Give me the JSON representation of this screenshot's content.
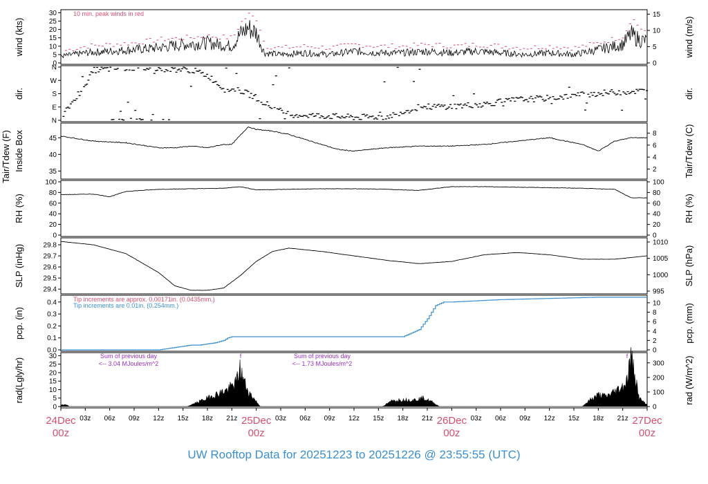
{
  "title": "UW Rooftop Data for 20251223  to  20251226 @ 23:55:55  (UTC)",
  "colors": {
    "frame": "#000000",
    "series": "#000000",
    "peak": "#d84f6d",
    "pcp_fine": "#d84f6d",
    "pcp_tip": "#3a8fd0",
    "rad_note": "#9b30c8",
    "date_label": "#d84f6d",
    "title": "#3a8fd0"
  },
  "x_axis": {
    "hour_ticks": [
      "03z",
      "06z",
      "09z",
      "12z",
      "15z",
      "18z",
      "21z",
      "03z",
      "06z",
      "09z",
      "12z",
      "15z",
      "18z",
      "21z",
      "03z",
      "06z",
      "09z",
      "12z",
      "15z",
      "18z",
      "21z"
    ],
    "day_labels": [
      {
        "date": "24Dec",
        "hour": "00z"
      },
      {
        "date": "25Dec",
        "hour": "00z"
      },
      {
        "date": "26Dec",
        "hour": "00z"
      },
      {
        "date": "27Dec",
        "hour": "00z"
      }
    ]
  },
  "chart_data": [
    {
      "id": "wind",
      "type": "line",
      "ylabel": "wind (kts)",
      "ylabel_right": "wind (m/s)",
      "ylim": [
        0,
        31
      ],
      "yticks": [
        0,
        5,
        10,
        15,
        20,
        25,
        30
      ],
      "right_ticks": [
        0,
        5,
        10,
        15
      ],
      "right_scale": 0.5144,
      "annotation": "10 min. peak winds in red",
      "x_hours": [
        0,
        3,
        6,
        9,
        12,
        15,
        18,
        21,
        22,
        23,
        24,
        25,
        27,
        30,
        33,
        36,
        39,
        42,
        45,
        48,
        51,
        54,
        57,
        60,
        63,
        66,
        69,
        70,
        71,
        72
      ],
      "series": [
        {
          "name": "wind",
          "values": [
            4,
            6,
            7,
            8,
            9,
            11,
            12,
            10,
            17,
            21,
            18,
            6,
            5,
            6,
            5,
            7,
            6,
            6,
            7,
            6,
            7,
            6,
            5,
            6,
            5,
            8,
            11,
            17,
            14,
            13
          ]
        },
        {
          "name": "peak",
          "values": [
            7,
            10,
            11,
            12,
            14,
            15,
            16,
            15,
            24,
            29,
            26,
            10,
            9,
            10,
            9,
            11,
            10,
            10,
            11,
            10,
            11,
            10,
            9,
            10,
            9,
            12,
            16,
            27,
            21,
            18
          ]
        }
      ]
    },
    {
      "id": "dir",
      "type": "scatter",
      "ylabel": "dir.",
      "ylabel_right": "dir.",
      "ylim": [
        0,
        360
      ],
      "tick_values": [
        0,
        90,
        180,
        270,
        360
      ],
      "tick_labels": [
        "N",
        "E",
        "S",
        "W",
        "N"
      ],
      "x_hours": [
        0,
        4,
        8,
        12,
        16,
        18,
        20,
        22,
        24,
        26,
        28,
        32,
        36,
        40,
        42,
        44,
        48,
        52,
        56,
        60,
        64,
        68,
        72
      ],
      "values": [
        20,
        340,
        355,
        350,
        340,
        300,
        210,
        200,
        150,
        80,
        40,
        30,
        20,
        25,
        60,
        90,
        95,
        110,
        140,
        150,
        175,
        190,
        200
      ]
    },
    {
      "id": "temp",
      "type": "line",
      "ylabel": "Inside Box",
      "ylabel_outer": "Tair/Tdew (F)",
      "ylabel_right": "Tair/Tdew (C)",
      "ylim": [
        33,
        49
      ],
      "yticks": [
        35,
        40,
        45
      ],
      "right_ticks": [
        2,
        4,
        6,
        8
      ],
      "x_hours": [
        0,
        4,
        8,
        12,
        14,
        16,
        18,
        20,
        21,
        23,
        24,
        26,
        28,
        30,
        32,
        34,
        36,
        40,
        44,
        48,
        52,
        56,
        60,
        62,
        64,
        66,
        68,
        70,
        72
      ],
      "values": [
        45.5,
        44,
        43.5,
        42,
        42,
        42.5,
        42,
        43,
        43,
        48.3,
        47.5,
        47,
        46,
        44.5,
        43,
        41.5,
        41,
        42,
        42.5,
        42.5,
        43,
        44,
        45,
        44,
        43,
        41,
        44,
        45,
        45
      ]
    },
    {
      "id": "rh",
      "type": "line",
      "ylabel": "RH (%)",
      "ylabel_right": "RH (%)",
      "ylim": [
        0,
        100
      ],
      "yticks": [
        0,
        20,
        40,
        60,
        80,
        100
      ],
      "right_ticks": [
        0,
        20,
        40,
        60,
        80,
        100
      ],
      "x_hours": [
        0,
        4,
        6,
        8,
        12,
        16,
        20,
        22,
        24,
        28,
        32,
        36,
        40,
        44,
        48,
        52,
        56,
        60,
        64,
        68,
        70,
        72
      ],
      "values": [
        76,
        77,
        72,
        82,
        86,
        87,
        88,
        91,
        85,
        86,
        87,
        87,
        86,
        84,
        91,
        91,
        90,
        89,
        88,
        86,
        70,
        70
      ]
    },
    {
      "id": "slp",
      "type": "line",
      "ylabel": "SLP (inHg)",
      "ylabel_right": "SLP (hPa)",
      "ylim": [
        29.37,
        29.85
      ],
      "yticks": [
        29.4,
        29.5,
        29.6,
        29.7,
        29.8
      ],
      "right_ticks": [
        995,
        1000,
        1005,
        1010
      ],
      "x_hours": [
        0,
        4,
        8,
        12,
        14,
        16,
        18,
        20,
        22,
        24,
        26,
        28,
        32,
        36,
        40,
        44,
        48,
        52,
        56,
        60,
        64,
        68,
        72
      ],
      "values": [
        29.83,
        29.8,
        29.72,
        29.55,
        29.43,
        29.39,
        29.39,
        29.41,
        29.52,
        29.65,
        29.74,
        29.77,
        29.74,
        29.7,
        29.66,
        29.63,
        29.65,
        29.71,
        29.73,
        29.71,
        29.67,
        29.67,
        29.7
      ]
    },
    {
      "id": "pcp",
      "type": "line",
      "ylabel": "pcp. (in)",
      "ylabel_right": "pcp. (mm)",
      "ylim": [
        0,
        0.445
      ],
      "yticks": [
        0.0,
        0.1,
        0.2,
        0.3,
        0.4
      ],
      "right_ticks": [
        0,
        2,
        4,
        6,
        8,
        10
      ],
      "notes": [
        "Tip increments are approx. 0.00171in. (0.0435mm.)",
        "Tip increments are 0.01in. (0.254mm.)"
      ],
      "x_hours": [
        0,
        12,
        13,
        14,
        15,
        16,
        17,
        18,
        19,
        20,
        20.5,
        21,
        24,
        36,
        42,
        43,
        44,
        45,
        46,
        47,
        48,
        54,
        60,
        66,
        72
      ],
      "values": [
        0.0,
        0.0,
        0.01,
        0.02,
        0.03,
        0.04,
        0.04,
        0.05,
        0.06,
        0.08,
        0.1,
        0.11,
        0.11,
        0.11,
        0.11,
        0.14,
        0.17,
        0.26,
        0.37,
        0.4,
        0.4,
        0.42,
        0.43,
        0.44,
        0.44
      ]
    },
    {
      "id": "rad",
      "type": "area",
      "ylabel": "rad(Lgly/hr)",
      "ylabel_right": "rad (W/m^2)",
      "ylim": [
        0,
        31
      ],
      "yticks": [
        0,
        5,
        10,
        15,
        20,
        25,
        30
      ],
      "right_ticks": [
        0,
        100,
        200,
        300
      ],
      "notes": [
        {
          "line1": "Sum of previous day",
          "line2": "<-- 3.04 MJoules/m^2",
          "mark": "f"
        },
        {
          "line1": "Sum of previous day",
          "line2": "<-- 1.73 MJoules/m^2",
          "mark": "f"
        }
      ],
      "x_hours": [
        0,
        0.8,
        1,
        15.5,
        16.5,
        17.5,
        18.5,
        19.5,
        20.5,
        21.5,
        22,
        22.5,
        23,
        24,
        24.5,
        39.5,
        40.5,
        41.5,
        42.5,
        43.5,
        44.5,
        45.5,
        46.5,
        64,
        65,
        66,
        67,
        68,
        69,
        69.5,
        70,
        70.5,
        71,
        72
      ],
      "values": [
        1,
        1,
        0,
        0,
        2,
        4,
        6,
        8,
        10,
        14,
        22,
        15,
        9,
        3,
        0,
        0,
        3,
        4,
        4,
        4,
        5,
        3,
        0,
        0,
        4,
        7,
        6,
        9,
        12,
        15,
        29,
        20,
        5,
        1
      ]
    }
  ]
}
